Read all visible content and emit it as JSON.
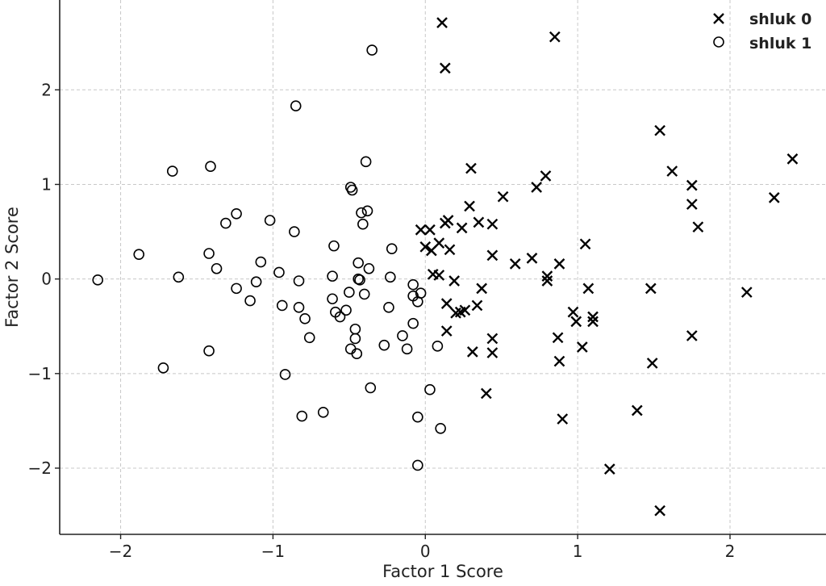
{
  "chart_data": {
    "type": "scatter",
    "title": "",
    "xlabel": "Factor 1 Score",
    "ylabel": "Factor 2 Score",
    "xlim": [
      -2.4,
      2.63
    ],
    "ylim": [
      -2.7,
      2.95
    ],
    "xticks": [
      -2,
      -1,
      0,
      1,
      2
    ],
    "xtick_labels": [
      "−2",
      "−1",
      "0",
      "1",
      "2"
    ],
    "yticks": [
      -2,
      -1,
      0,
      1,
      2
    ],
    "ytick_labels": [
      "−2",
      "−1",
      "0",
      "1",
      "2"
    ],
    "grid": true,
    "legend_position": "top-right",
    "series": [
      {
        "name": "shluk 0",
        "marker": "x",
        "color": "#000000",
        "points": [
          [
            0.11,
            2.71
          ],
          [
            0.13,
            2.23
          ],
          [
            0.85,
            2.56
          ],
          [
            2.41,
            1.27
          ],
          [
            1.54,
            1.57
          ],
          [
            1.62,
            1.14
          ],
          [
            1.75,
            0.99
          ],
          [
            1.75,
            0.79
          ],
          [
            1.79,
            0.55
          ],
          [
            2.29,
            0.86
          ],
          [
            2.11,
            -0.14
          ],
          [
            1.48,
            -0.1
          ],
          [
            1.75,
            -0.6
          ],
          [
            1.49,
            -0.89
          ],
          [
            1.39,
            -1.39
          ],
          [
            1.21,
            -2.01
          ],
          [
            1.54,
            -2.45
          ],
          [
            0.9,
            -1.48
          ],
          [
            0.4,
            -1.21
          ],
          [
            0.3,
            1.17
          ],
          [
            0.73,
            0.97
          ],
          [
            0.79,
            1.09
          ],
          [
            0.51,
            0.87
          ],
          [
            0.29,
            0.77
          ],
          [
            0.35,
            0.6
          ],
          [
            0.44,
            0.58
          ],
          [
            0.15,
            0.62
          ],
          [
            0.13,
            0.59
          ],
          [
            0.03,
            0.52
          ],
          [
            -0.03,
            0.52
          ],
          [
            0.24,
            0.54
          ],
          [
            0.0,
            0.34
          ],
          [
            0.09,
            0.38
          ],
          [
            0.04,
            0.3
          ],
          [
            0.16,
            0.31
          ],
          [
            0.44,
            0.25
          ],
          [
            0.59,
            0.16
          ],
          [
            0.7,
            0.22
          ],
          [
            0.8,
            0.03
          ],
          [
            0.8,
            -0.02
          ],
          [
            0.88,
            0.16
          ],
          [
            1.05,
            0.37
          ],
          [
            0.05,
            0.05
          ],
          [
            0.09,
            0.04
          ],
          [
            0.19,
            -0.02
          ],
          [
            0.37,
            -0.1
          ],
          [
            0.14,
            -0.26
          ],
          [
            0.2,
            -0.36
          ],
          [
            0.23,
            -0.35
          ],
          [
            0.26,
            -0.33
          ],
          [
            0.34,
            -0.28
          ],
          [
            1.07,
            -0.1
          ],
          [
            0.97,
            -0.35
          ],
          [
            0.99,
            -0.45
          ],
          [
            1.1,
            -0.4
          ],
          [
            1.1,
            -0.45
          ],
          [
            0.14,
            -0.55
          ],
          [
            0.44,
            -0.63
          ],
          [
            0.31,
            -0.77
          ],
          [
            0.44,
            -0.78
          ],
          [
            0.87,
            -0.62
          ],
          [
            1.03,
            -0.72
          ],
          [
            0.88,
            -0.87
          ]
        ]
      },
      {
        "name": "shluk 1",
        "marker": "o",
        "color": "#000000",
        "points": [
          [
            -0.35,
            2.42
          ],
          [
            -0.85,
            1.83
          ],
          [
            -1.66,
            1.14
          ],
          [
            -1.41,
            1.19
          ],
          [
            -0.39,
            1.24
          ],
          [
            -0.49,
            0.97
          ],
          [
            -0.48,
            0.94
          ],
          [
            -1.24,
            0.69
          ],
          [
            -1.31,
            0.59
          ],
          [
            -1.02,
            0.62
          ],
          [
            -0.42,
            0.7
          ],
          [
            -0.38,
            0.72
          ],
          [
            -0.41,
            0.58
          ],
          [
            -0.86,
            0.5
          ],
          [
            -0.6,
            0.35
          ],
          [
            -0.22,
            0.32
          ],
          [
            -1.88,
            0.26
          ],
          [
            -1.42,
            0.27
          ],
          [
            -1.08,
            0.18
          ],
          [
            -1.37,
            0.11
          ],
          [
            -0.44,
            0.17
          ],
          [
            -0.37,
            0.11
          ],
          [
            -0.96,
            0.07
          ],
          [
            -0.61,
            0.03
          ],
          [
            -0.23,
            0.02
          ],
          [
            -2.15,
            -0.01
          ],
          [
            -1.62,
            0.02
          ],
          [
            -0.44,
            0.0
          ],
          [
            -0.43,
            -0.01
          ],
          [
            -0.83,
            -0.02
          ],
          [
            -1.11,
            -0.03
          ],
          [
            -1.24,
            -0.1
          ],
          [
            -0.08,
            -0.06
          ],
          [
            -0.5,
            -0.14
          ],
          [
            -0.4,
            -0.16
          ],
          [
            -0.03,
            -0.15
          ],
          [
            -0.08,
            -0.18
          ],
          [
            -0.05,
            -0.24
          ],
          [
            -1.15,
            -0.23
          ],
          [
            -0.61,
            -0.21
          ],
          [
            -0.94,
            -0.28
          ],
          [
            -0.83,
            -0.3
          ],
          [
            -0.24,
            -0.3
          ],
          [
            -0.59,
            -0.35
          ],
          [
            -0.52,
            -0.33
          ],
          [
            -0.56,
            -0.4
          ],
          [
            -0.79,
            -0.42
          ],
          [
            -0.08,
            -0.47
          ],
          [
            -0.46,
            -0.53
          ],
          [
            -0.15,
            -0.6
          ],
          [
            -0.46,
            -0.63
          ],
          [
            -0.76,
            -0.62
          ],
          [
            -0.27,
            -0.7
          ],
          [
            -0.49,
            -0.74
          ],
          [
            -0.12,
            -0.74
          ],
          [
            -0.45,
            -0.79
          ],
          [
            0.08,
            -0.71
          ],
          [
            -1.42,
            -0.76
          ],
          [
            -1.72,
            -0.94
          ],
          [
            -0.92,
            -1.01
          ],
          [
            -0.36,
            -1.15
          ],
          [
            0.03,
            -1.17
          ],
          [
            -0.81,
            -1.45
          ],
          [
            -0.67,
            -1.41
          ],
          [
            -0.05,
            -1.46
          ],
          [
            0.1,
            -1.58
          ],
          [
            -0.05,
            -1.97
          ]
        ]
      }
    ]
  }
}
